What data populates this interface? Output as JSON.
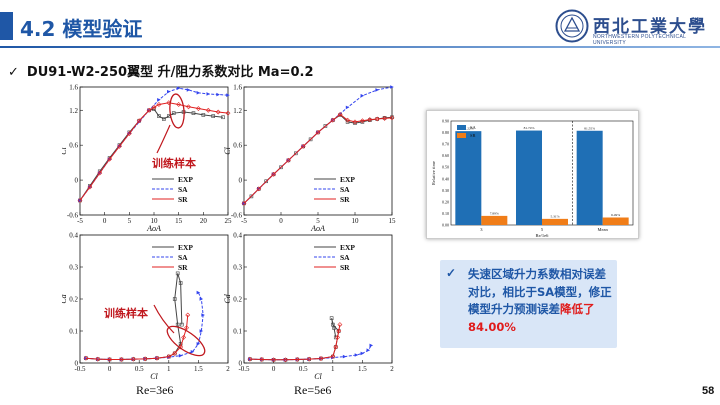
{
  "header": {
    "title": "4.2 模型验证",
    "logo_text": "西北工業大學",
    "logo_sub": "NORTHWESTERN POLYTECHNICAL UNIVERSITY"
  },
  "heading": {
    "tick": "✓",
    "text": "DU91-W2-250翼型 升/阻力系数对比 Ma=0.2"
  },
  "colors": {
    "exp": "#444444",
    "sa": "#3344ee",
    "sr": "#e02020",
    "accent": "#1f57a6",
    "bar_sa": "#1f6fb5",
    "bar_sr": "#f07d18"
  },
  "annotations": {
    "train1": "训练样本",
    "train2": "训练样本"
  },
  "captions": {
    "left": "Re=3e6",
    "right": "Re=5e6"
  },
  "legend": {
    "exp": "EXP",
    "sa": "SA",
    "sr": "SR"
  },
  "axis_labels": {
    "cl": "C_l",
    "cd": "C_d",
    "aoa": "AoA",
    "cl_x": "C_l"
  },
  "chart_data": [
    {
      "type": "line",
      "panel": "cl-re3e6",
      "xlabel": "AoA",
      "ylabel": "Cl",
      "xlim": [
        -5,
        25
      ],
      "ylim": [
        -0.6,
        1.6
      ],
      "xticks": [
        "-5",
        "0",
        "5",
        "10",
        "15",
        "20",
        "25"
      ],
      "yticks": [
        "-0.6",
        "0",
        "0.6",
        "1.2",
        "1.6"
      ],
      "series": [
        {
          "name": "EXP",
          "x": [
            -5,
            -3,
            -1,
            1,
            3,
            5,
            7,
            9,
            10,
            11,
            12,
            13,
            14,
            16,
            18,
            20,
            22,
            24
          ],
          "y": [
            -0.35,
            -0.1,
            0.15,
            0.38,
            0.6,
            0.82,
            1.02,
            1.2,
            1.22,
            1.1,
            1.05,
            1.1,
            1.15,
            1.17,
            1.15,
            1.12,
            1.1,
            1.08
          ]
        },
        {
          "name": "SA",
          "x": [
            -5,
            -3,
            -1,
            1,
            3,
            5,
            7,
            9,
            11,
            13,
            15,
            17,
            19,
            21,
            23,
            25
          ],
          "y": [
            -0.35,
            -0.12,
            0.12,
            0.36,
            0.58,
            0.8,
            1.0,
            1.2,
            1.38,
            1.52,
            1.58,
            1.55,
            1.5,
            1.48,
            1.47,
            1.46
          ]
        },
        {
          "name": "SR",
          "x": [
            -5,
            -3,
            -1,
            1,
            3,
            5,
            7,
            9,
            10,
            11,
            13,
            15,
            17,
            19,
            21,
            23,
            25
          ],
          "y": [
            -0.35,
            -0.12,
            0.12,
            0.36,
            0.58,
            0.8,
            1.02,
            1.2,
            1.25,
            1.3,
            1.33,
            1.3,
            1.26,
            1.23,
            1.2,
            1.17,
            1.15
          ]
        }
      ]
    },
    {
      "type": "line",
      "panel": "cl-re5e6",
      "xlabel": "AoA",
      "ylabel": "Cl",
      "xlim": [
        -5,
        15
      ],
      "ylim": [
        -0.6,
        1.6
      ],
      "xticks": [
        "-5",
        "0",
        "5",
        "10",
        "15"
      ],
      "yticks": [
        "-0.6",
        "0",
        "0.6",
        "1.2",
        "1.6"
      ],
      "series": [
        {
          "name": "EXP",
          "x": [
            -5,
            -4,
            -3,
            -2,
            -1,
            0,
            1,
            2,
            3,
            4,
            5,
            6,
            7,
            8,
            9,
            10,
            11,
            12,
            13,
            14,
            15
          ],
          "y": [
            -0.4,
            -0.28,
            -0.15,
            -0.02,
            0.1,
            0.22,
            0.34,
            0.46,
            0.58,
            0.7,
            0.82,
            0.93,
            1.03,
            1.12,
            1.0,
            0.98,
            1.0,
            1.03,
            1.05,
            1.07,
            1.08
          ]
        },
        {
          "name": "SA",
          "x": [
            -5,
            -3,
            -1,
            1,
            3,
            5,
            7,
            9,
            11,
            13,
            15
          ],
          "y": [
            -0.4,
            -0.15,
            0.1,
            0.34,
            0.58,
            0.82,
            1.03,
            1.25,
            1.45,
            1.55,
            1.6
          ]
        },
        {
          "name": "SR",
          "x": [
            -5,
            -3,
            -1,
            1,
            3,
            5,
            7,
            8,
            9,
            10,
            11,
            12,
            13,
            14,
            15
          ],
          "y": [
            -0.4,
            -0.15,
            0.1,
            0.34,
            0.58,
            0.82,
            1.03,
            1.13,
            1.03,
            1.0,
            1.02,
            1.04,
            1.05,
            1.06,
            1.07
          ]
        }
      ]
    },
    {
      "type": "line",
      "panel": "cd-re3e6",
      "xlabel": "Cl",
      "ylabel": "Cd",
      "xlim": [
        -0.5,
        2
      ],
      "ylim": [
        0,
        0.4
      ],
      "xticks": [
        "-0.5",
        "0",
        "0.5",
        "1",
        "1.5",
        "2"
      ],
      "yticks": [
        "0",
        "0.1",
        "0.2",
        "0.3",
        "0.4"
      ],
      "series": [
        {
          "name": "EXP",
          "x": [
            -0.4,
            -0.2,
            0,
            0.2,
            0.4,
            0.6,
            0.8,
            1.0,
            1.1,
            1.2,
            1.15,
            1.1,
            1.15,
            1.2,
            1.22
          ],
          "y": [
            0.015,
            0.012,
            0.011,
            0.011,
            0.012,
            0.013,
            0.015,
            0.02,
            0.03,
            0.06,
            0.12,
            0.2,
            0.28,
            0.25,
            0.12
          ]
        },
        {
          "name": "SA",
          "x": [
            -0.4,
            -0.2,
            0,
            0.2,
            0.4,
            0.6,
            0.8,
            1.0,
            1.2,
            1.4,
            1.5,
            1.55,
            1.58,
            1.55,
            1.5
          ],
          "y": [
            0.015,
            0.012,
            0.011,
            0.011,
            0.012,
            0.013,
            0.015,
            0.018,
            0.023,
            0.035,
            0.06,
            0.1,
            0.15,
            0.2,
            0.22
          ]
        },
        {
          "name": "SR",
          "x": [
            -0.4,
            -0.2,
            0,
            0.2,
            0.4,
            0.6,
            0.8,
            1.0,
            1.1,
            1.2,
            1.25,
            1.3,
            1.32
          ],
          "y": [
            0.015,
            0.012,
            0.011,
            0.011,
            0.012,
            0.013,
            0.015,
            0.02,
            0.03,
            0.05,
            0.08,
            0.11,
            0.15
          ]
        }
      ]
    },
    {
      "type": "line",
      "panel": "cd-re5e6",
      "xlabel": "Cl",
      "ylabel": "Cd",
      "xlim": [
        -0.5,
        2
      ],
      "ylim": [
        0,
        0.4
      ],
      "xticks": [
        "-0.5",
        "0",
        "0.5",
        "1",
        "1.5",
        "2"
      ],
      "yticks": [
        "0",
        "0.1",
        "0.2",
        "0.3",
        "0.4"
      ],
      "series": [
        {
          "name": "EXP",
          "x": [
            -0.4,
            -0.2,
            0,
            0.2,
            0.4,
            0.6,
            0.8,
            1.0,
            1.05,
            1.1,
            1.0,
            0.98,
            1.02,
            1.05
          ],
          "y": [
            0.012,
            0.011,
            0.01,
            0.01,
            0.011,
            0.012,
            0.014,
            0.02,
            0.05,
            0.1,
            0.12,
            0.14,
            0.11,
            0.08
          ]
        },
        {
          "name": "SA",
          "x": [
            -0.4,
            -0.2,
            0,
            0.2,
            0.4,
            0.6,
            0.8,
            1.0,
            1.2,
            1.4,
            1.5,
            1.6,
            1.65
          ],
          "y": [
            0.012,
            0.011,
            0.01,
            0.01,
            0.011,
            0.012,
            0.014,
            0.017,
            0.02,
            0.025,
            0.03,
            0.04,
            0.055
          ]
        },
        {
          "name": "SR",
          "x": [
            -0.4,
            -0.2,
            0,
            0.2,
            0.4,
            0.6,
            0.8,
            1.0,
            1.05,
            1.08,
            1.1,
            1.12
          ],
          "y": [
            0.012,
            0.011,
            0.01,
            0.01,
            0.011,
            0.012,
            0.014,
            0.02,
            0.05,
            0.08,
            0.1,
            0.12
          ]
        }
      ]
    },
    {
      "type": "bar",
      "panel": "relative-time",
      "ylabel": "Relative time",
      "xlabel": "Re/1e6",
      "categories": [
        "3",
        "5",
        "Mean"
      ],
      "yticks": [
        "0.00",
        "0.10",
        "0.20",
        "0.30",
        "0.40",
        "0.50",
        "0.60",
        "0.70",
        "0.80",
        "0.90"
      ],
      "ylim": [
        0,
        0.9
      ],
      "series": [
        {
          "name": "SA",
          "values": [
            0.8122,
            0.8174,
            0.8155
          ],
          "labels": [
            "81.22%",
            "81.74%",
            "81.55%"
          ]
        },
        {
          "name": "SR",
          "values": [
            0.0789,
            0.0531,
            0.0649
          ],
          "labels": [
            "7.89%",
            "5.31%",
            "6.49%"
          ]
        }
      ]
    }
  ],
  "note": {
    "tick": "✓",
    "part1": "失速区域升力系数相对误差对比，相比于SA模型，修正模型升力预测误差",
    "highlight": "降低了84.00%"
  },
  "page": "58"
}
